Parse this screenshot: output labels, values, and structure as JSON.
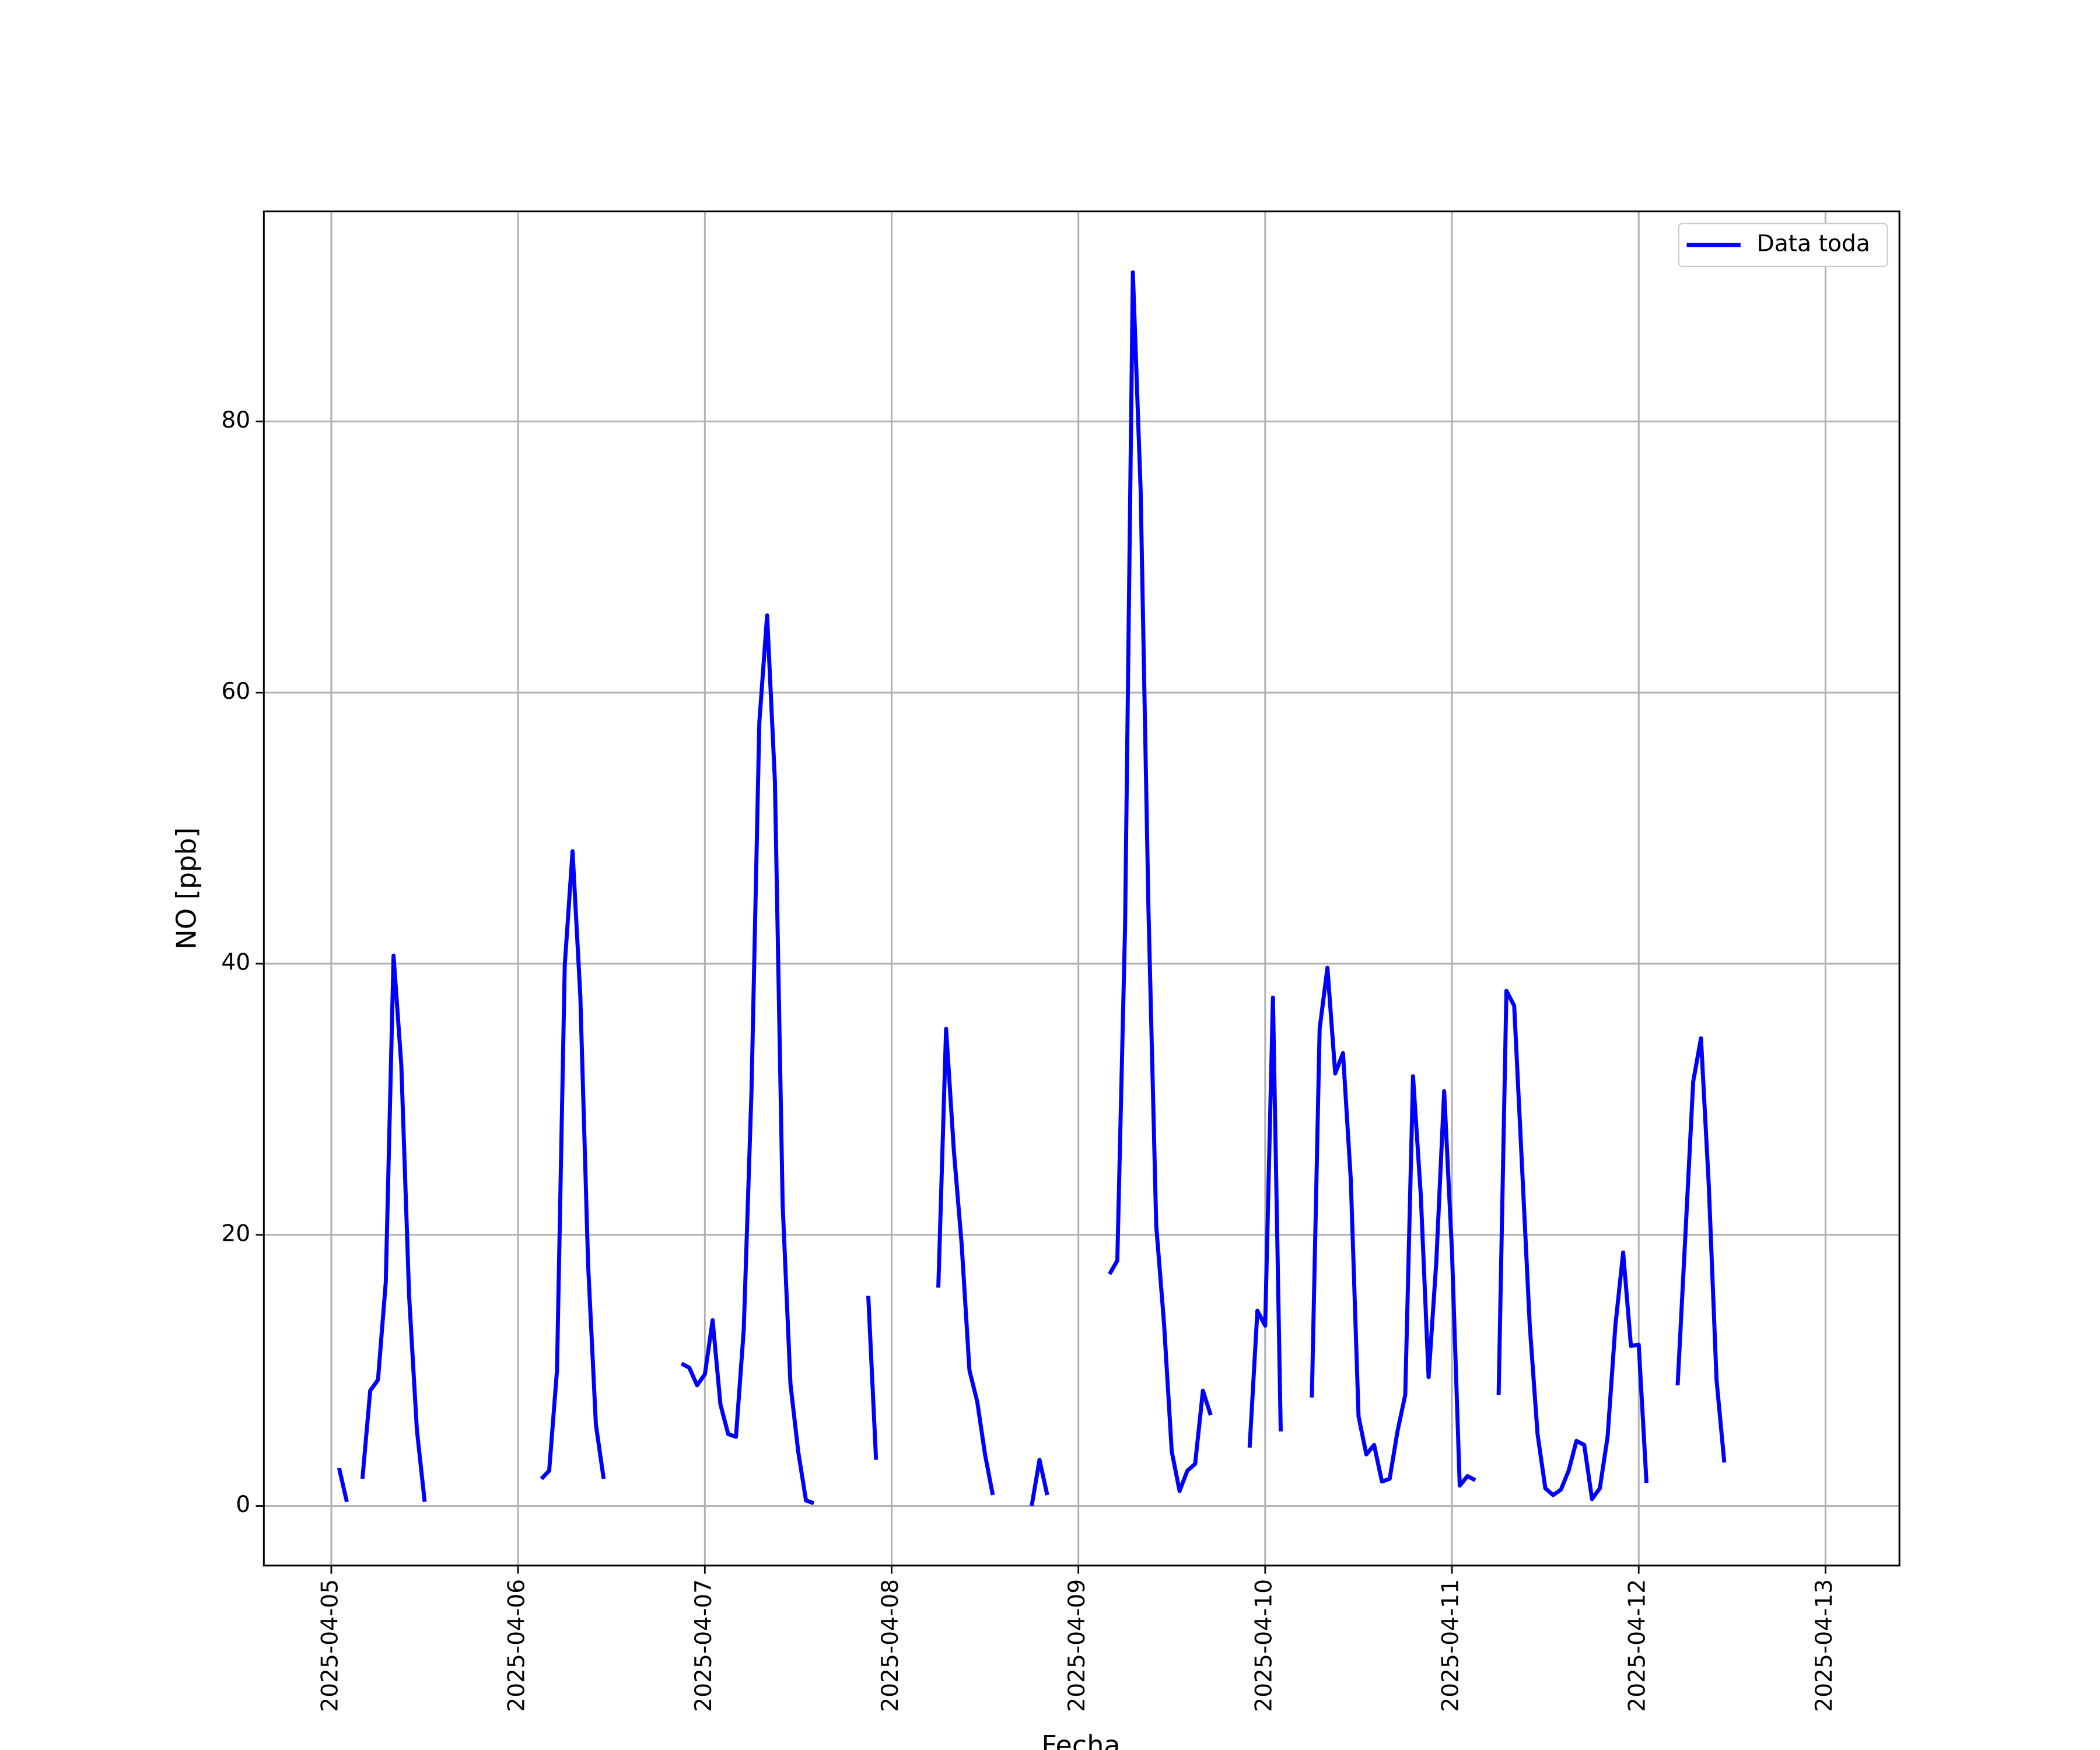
{
  "chart_data": {
    "type": "line",
    "x_label": "Fecha",
    "y_label": "NO [ppb]",
    "x": [
      "2025-04-05T01:00",
      "2025-04-05T02:00",
      "2025-04-05T03:00",
      "2025-04-05T04:00",
      "2025-04-05T05:00",
      "2025-04-05T06:00",
      "2025-04-05T07:00",
      "2025-04-05T08:00",
      "2025-04-05T09:00",
      "2025-04-05T10:00",
      "2025-04-05T11:00",
      "2025-04-05T12:00",
      "2025-04-05T13:00",
      "2025-04-06T03:00",
      "2025-04-06T04:00",
      "2025-04-06T05:00",
      "2025-04-06T06:00",
      "2025-04-06T07:00",
      "2025-04-06T08:00",
      "2025-04-06T09:00",
      "2025-04-06T10:00",
      "2025-04-06T11:00",
      "2025-04-06T12:00",
      "2025-04-06T21:00",
      "2025-04-06T22:00",
      "2025-04-06T23:00",
      "2025-04-07T00:00",
      "2025-04-07T01:00",
      "2025-04-07T02:00",
      "2025-04-07T03:00",
      "2025-04-07T04:00",
      "2025-04-07T05:00",
      "2025-04-07T06:00",
      "2025-04-07T07:00",
      "2025-04-07T08:00",
      "2025-04-07T09:00",
      "2025-04-07T10:00",
      "2025-04-07T11:00",
      "2025-04-07T12:00",
      "2025-04-07T13:00",
      "2025-04-07T14:00",
      "2025-04-07T15:00",
      "2025-04-07T21:00",
      "2025-04-07T22:00",
      "2025-04-07T23:00",
      "2025-04-08T06:00",
      "2025-04-08T07:00",
      "2025-04-08T08:00",
      "2025-04-08T09:00",
      "2025-04-08T10:00",
      "2025-04-08T11:00",
      "2025-04-08T12:00",
      "2025-04-08T13:00",
      "2025-04-08T14:00",
      "2025-04-08T18:00",
      "2025-04-08T19:00",
      "2025-04-08T20:00",
      "2025-04-08T21:00",
      "2025-04-09T04:00",
      "2025-04-09T05:00",
      "2025-04-09T06:00",
      "2025-04-09T07:00",
      "2025-04-09T08:00",
      "2025-04-09T09:00",
      "2025-04-09T10:00",
      "2025-04-09T11:00",
      "2025-04-09T12:00",
      "2025-04-09T13:00",
      "2025-04-09T14:00",
      "2025-04-09T15:00",
      "2025-04-09T16:00",
      "2025-04-09T17:00",
      "2025-04-09T18:00",
      "2025-04-09T22:00",
      "2025-04-09T23:00",
      "2025-04-10T00:00",
      "2025-04-10T01:00",
      "2025-04-10T02:00",
      "2025-04-10T03:00",
      "2025-04-10T06:00",
      "2025-04-10T07:00",
      "2025-04-10T08:00",
      "2025-04-10T09:00",
      "2025-04-10T10:00",
      "2025-04-10T11:00",
      "2025-04-10T12:00",
      "2025-04-10T13:00",
      "2025-04-10T14:00",
      "2025-04-10T15:00",
      "2025-04-10T16:00",
      "2025-04-10T17:00",
      "2025-04-10T18:00",
      "2025-04-10T19:00",
      "2025-04-10T20:00",
      "2025-04-10T21:00",
      "2025-04-10T22:00",
      "2025-04-10T23:00",
      "2025-04-11T00:00",
      "2025-04-11T01:00",
      "2025-04-11T02:00",
      "2025-04-11T03:00",
      "2025-04-11T04:00",
      "2025-04-11T06:00",
      "2025-04-11T07:00",
      "2025-04-11T08:00",
      "2025-04-11T09:00",
      "2025-04-11T10:00",
      "2025-04-11T11:00",
      "2025-04-11T12:00",
      "2025-04-11T13:00",
      "2025-04-11T14:00",
      "2025-04-11T15:00",
      "2025-04-11T16:00",
      "2025-04-11T17:00",
      "2025-04-11T18:00",
      "2025-04-11T19:00",
      "2025-04-11T20:00",
      "2025-04-11T21:00",
      "2025-04-11T22:00",
      "2025-04-11T23:00",
      "2025-04-12T00:00",
      "2025-04-12T01:00",
      "2025-04-12T02:00",
      "2025-04-12T05:00",
      "2025-04-12T06:00",
      "2025-04-12T07:00",
      "2025-04-12T08:00",
      "2025-04-12T09:00",
      "2025-04-12T10:00",
      "2025-04-12T11:00"
    ],
    "series": [
      {
        "name": "Data toda",
        "color": "#0000ff",
        "values": [
          2.8,
          0.3,
          null,
          2.0,
          8.5,
          9.3,
          16.5,
          40.6,
          32.5,
          15.5,
          5.6,
          0.3,
          null,
          2.0,
          2.6,
          10.0,
          39.9,
          48.3,
          37.6,
          17.8,
          6.0,
          2.0,
          null,
          10.5,
          10.2,
          8.9,
          9.7,
          13.7,
          7.5,
          5.3,
          5.1,
          13.0,
          30.7,
          57.8,
          65.7,
          53.5,
          22.2,
          9.0,
          4.0,
          0.4,
          0.2,
          null,
          15.5,
          3.4,
          null,
          16.1,
          35.2,
          26.2,
          19.3,
          10.0,
          7.7,
          3.8,
          0.8,
          null,
          0.0,
          3.4,
          0.8,
          null,
          17.1,
          18.1,
          42.8,
          91.0,
          74.9,
          44.1,
          20.7,
          13.5,
          4.0,
          1.1,
          2.6,
          3.1,
          8.5,
          6.7,
          null,
          4.3,
          14.4,
          13.3,
          37.5,
          5.5,
          null,
          8.0,
          35.2,
          39.7,
          31.9,
          33.4,
          24.1,
          6.6,
          3.8,
          4.5,
          1.8,
          2.0,
          5.5,
          8.2,
          31.7,
          22.9,
          9.5,
          18.1,
          30.6,
          18.8,
          1.5,
          2.2,
          1.9,
          null,
          8.2,
          38.0,
          36.9,
          25.1,
          13.3,
          5.3,
          1.3,
          0.8,
          1.2,
          2.6,
          4.8,
          4.5,
          0.5,
          1.3,
          5.1,
          13.3,
          18.7,
          11.8,
          11.9,
          1.7,
          null,
          8.9,
          20.0,
          31.3,
          34.5,
          23.7,
          9.3,
          3.2
        ]
      }
    ],
    "xlim": [
      "2025-04-04T15:20",
      "2025-04-13T09:30"
    ],
    "xticks": [
      "2025-04-05",
      "2025-04-06",
      "2025-04-07",
      "2025-04-08",
      "2025-04-09",
      "2025-04-10",
      "2025-04-11",
      "2025-04-12",
      "2025-04-13"
    ],
    "ylim": [
      -4.4,
      95.5
    ],
    "yticks": [
      0,
      20,
      40,
      60,
      80
    ],
    "grid": true,
    "legend": "upper right"
  }
}
